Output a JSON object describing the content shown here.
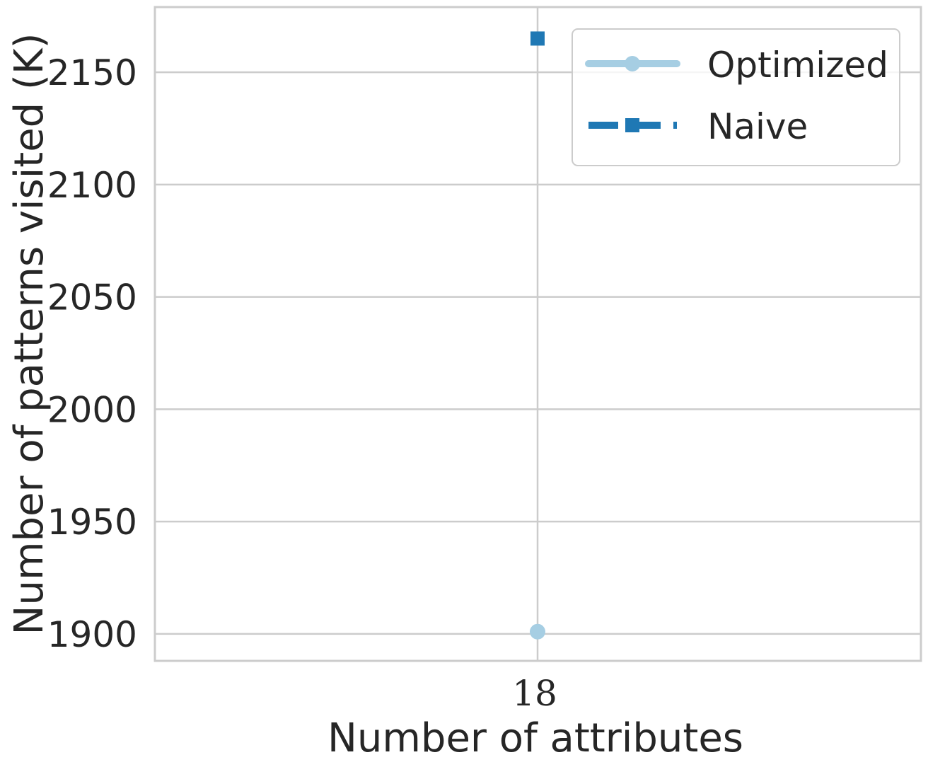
{
  "chart_data": {
    "type": "line",
    "title": "",
    "xlabel": "Number of attributes",
    "ylabel": "Number of patterns visited (K)",
    "x": [
      18
    ],
    "x_tick_labels": [
      "18"
    ],
    "ylim": [
      1888,
      2179
    ],
    "y_ticks": [
      1900,
      1950,
      2000,
      2050,
      2100,
      2150
    ],
    "grid": true,
    "legend_position": "upper-right",
    "series": [
      {
        "name": "Optimized",
        "values": [
          1901
        ],
        "color": "#a6cee3",
        "marker": "circle",
        "line_style": "solid"
      },
      {
        "name": "Naive",
        "values": [
          2165
        ],
        "color": "#1f78b4",
        "marker": "square",
        "line_style": "dashed"
      }
    ]
  }
}
